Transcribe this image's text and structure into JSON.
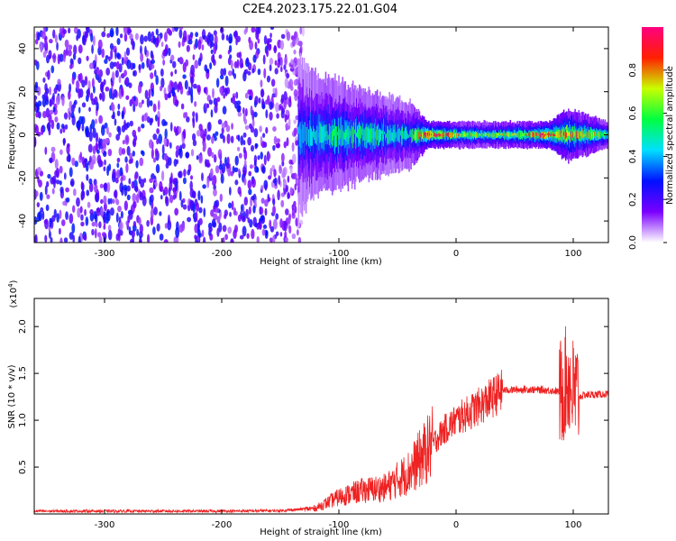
{
  "title": "C2E4.2023.175.22.01.G04",
  "chart_data": [
    {
      "type": "heatmap",
      "name": "spectrogram",
      "xlabel": "Height of straight line (km)",
      "ylabel": "Frequency (Hz)",
      "xlim": [
        -360,
        130
      ],
      "ylim": [
        -50,
        50
      ],
      "x_ticks": [
        -300,
        -200,
        -100,
        0,
        100
      ],
      "x_tick_labels": [
        "-300",
        "-200",
        "-100",
        "0",
        "100"
      ],
      "y_ticks": [
        -40,
        -20,
        0,
        20,
        40
      ],
      "y_tick_labels": [
        "-40",
        "-20",
        "0",
        "20",
        "40"
      ],
      "noise_region": [
        -360,
        -145
      ],
      "signal_ridge": [
        {
          "x": -135,
          "spread": 12,
          "amp": 0.38
        },
        {
          "x": -120,
          "spread": 9,
          "amp": 0.45
        },
        {
          "x": -100,
          "spread": 8,
          "amp": 0.5
        },
        {
          "x": -80,
          "spread": 7,
          "amp": 0.5
        },
        {
          "x": -60,
          "spread": 6,
          "amp": 0.5
        },
        {
          "x": -40,
          "spread": 5,
          "amp": 0.45
        },
        {
          "x": -25,
          "spread": 2,
          "amp": 0.95
        },
        {
          "x": 0,
          "spread": 2,
          "amp": 0.7
        },
        {
          "x": 30,
          "spread": 2,
          "amp": 0.62
        },
        {
          "x": 60,
          "spread": 2,
          "amp": 0.72
        },
        {
          "x": 80,
          "spread": 2,
          "amp": 0.95
        },
        {
          "x": 95,
          "spread": 4,
          "amp": 0.8
        },
        {
          "x": 130,
          "spread": 2,
          "amp": 0.6
        }
      ],
      "colorbar": {
        "label": "Normalized spectral amplitude",
        "range": [
          0,
          1
        ],
        "ticks": [
          0.0,
          0.2,
          0.4,
          0.6,
          0.8
        ],
        "tick_labels": [
          "0.0",
          "0.2",
          "0.4",
          "0.6",
          "0.8"
        ],
        "colormap": [
          "#ffffff",
          "#7a00ff",
          "#0010ff",
          "#00e0ff",
          "#00ff40",
          "#c8ff00",
          "#ff2000",
          "#ff0080"
        ]
      }
    },
    {
      "type": "line",
      "name": "snr",
      "xlabel": "Height of straight line (km)",
      "ylabel": "SNR (10 * v/v)",
      "y_multiplier": "(x10",
      "y_multiplier_exp": "4",
      "y_multiplier_close": ")",
      "xlim": [
        -360,
        130
      ],
      "ylim": [
        0,
        23000
      ],
      "x_ticks": [
        -300,
        -200,
        -100,
        0,
        100
      ],
      "x_tick_labels": [
        "-300",
        "-200",
        "-100",
        "0",
        "100"
      ],
      "y_ticks": [
        5000,
        10000,
        15000,
        20000
      ],
      "y_tick_labels": [
        "0.5",
        "1.0",
        "1.5",
        "2.0"
      ],
      "color": "#ee2222",
      "x": [
        -360,
        -300,
        -200,
        -150,
        -120,
        -100,
        -80,
        -60,
        -40,
        -20,
        -10,
        0,
        20,
        40,
        60,
        80,
        90,
        95,
        100,
        105,
        110,
        130
      ],
      "y": [
        300,
        300,
        300,
        350,
        600,
        1800,
        2500,
        2800,
        4500,
        7500,
        9000,
        10000,
        11500,
        13200,
        13300,
        13200,
        13000,
        14500,
        13000,
        12500,
        12700,
        12800
      ]
    }
  ]
}
